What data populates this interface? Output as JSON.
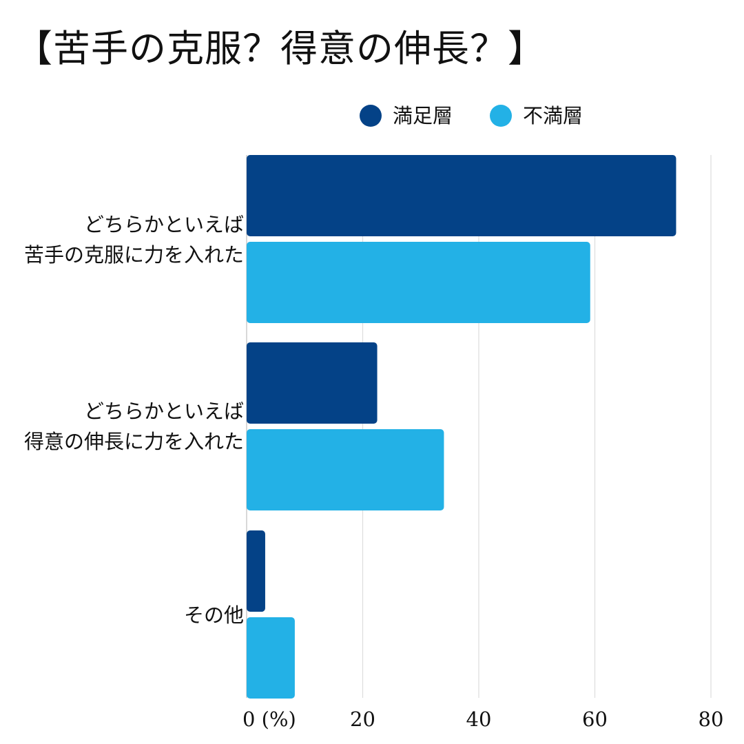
{
  "chart_data": {
    "type": "bar",
    "orientation": "horizontal",
    "title": "【苦手の克服？得意の伸長？】",
    "categories": [
      [
        "どちらかといえば",
        "苦手の克服に力を入れた"
      ],
      [
        "どちらかといえば",
        "得意の伸長に力を入れた"
      ],
      [
        "その他"
      ]
    ],
    "series": [
      {
        "name": "満足層",
        "color": "#044287",
        "values": [
          74,
          22.5,
          3.2
        ]
      },
      {
        "name": "不満層",
        "color": "#23b1e6",
        "values": [
          59.2,
          34,
          8.3
        ]
      }
    ],
    "xlim": [
      0,
      80
    ],
    "xticks": [
      0,
      20,
      40,
      60,
      80
    ],
    "xtick_labels": [
      "0 (%)",
      "20",
      "40",
      "60",
      "80"
    ],
    "grid": true,
    "legend_position": "top-right"
  }
}
